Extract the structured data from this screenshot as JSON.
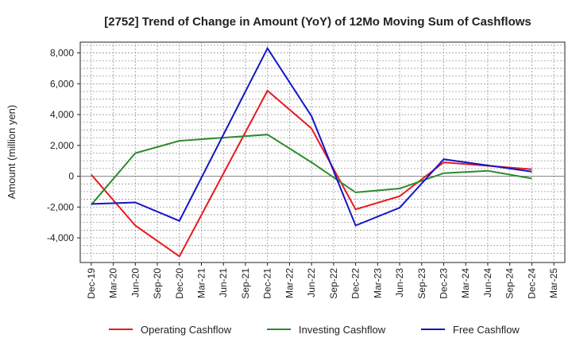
{
  "chart_data": {
    "type": "line",
    "title": "[2752]  Trend of Change in Amount (YoY) of 12Mo Moving Sum of Cashflows",
    "xlabel": "",
    "ylabel": "Amount (million yen)",
    "ylim": [
      -5600,
      8700
    ],
    "yticks": [
      -4000,
      -2000,
      0,
      2000,
      4000,
      6000,
      8000
    ],
    "ytick_labels": [
      "-4,000",
      "-2,000",
      "0",
      "2,000",
      "4,000",
      "6,000",
      "8,000"
    ],
    "categories": [
      "Dec-19",
      "Mar-20",
      "Jun-20",
      "Sep-20",
      "Dec-20",
      "Mar-21",
      "Jun-21",
      "Sep-21",
      "Dec-21",
      "Mar-22",
      "Jun-22",
      "Sep-22",
      "Dec-22",
      "Mar-23",
      "Jun-23",
      "Sep-23",
      "Dec-23",
      "Mar-24",
      "Jun-24",
      "Sep-24",
      "Dec-24",
      "Mar-25"
    ],
    "grid": true,
    "legend_position": "bottom",
    "series": [
      {
        "name": "Operating Cashflow",
        "color": "#e8191e",
        "points": [
          {
            "x": "Dec-19",
            "y": 100
          },
          {
            "x": "Jun-20",
            "y": -3200
          },
          {
            "x": "Dec-20",
            "y": -5200
          },
          {
            "x": "Dec-21",
            "y": 5550
          },
          {
            "x": "Jun-22",
            "y": 3100
          },
          {
            "x": "Dec-22",
            "y": -2150
          },
          {
            "x": "Jun-23",
            "y": -1300
          },
          {
            "x": "Dec-23",
            "y": 900
          },
          {
            "x": "Dec-24",
            "y": 450
          }
        ]
      },
      {
        "name": "Investing Cashflow",
        "color": "#2e8b2e",
        "points": [
          {
            "x": "Dec-19",
            "y": -1850
          },
          {
            "x": "Jun-20",
            "y": 1500
          },
          {
            "x": "Dec-20",
            "y": 2300
          },
          {
            "x": "Dec-21",
            "y": 2700
          },
          {
            "x": "Jun-22",
            "y": 900
          },
          {
            "x": "Dec-22",
            "y": -1050
          },
          {
            "x": "Jun-23",
            "y": -800
          },
          {
            "x": "Dec-23",
            "y": 200
          },
          {
            "x": "Jun-24",
            "y": 350
          },
          {
            "x": "Dec-24",
            "y": -150
          }
        ]
      },
      {
        "name": "Free Cashflow",
        "color": "#1414c8",
        "points": [
          {
            "x": "Dec-19",
            "y": -1800
          },
          {
            "x": "Jun-20",
            "y": -1700
          },
          {
            "x": "Dec-20",
            "y": -2900
          },
          {
            "x": "Dec-21",
            "y": 8300
          },
          {
            "x": "Jun-22",
            "y": 3900
          },
          {
            "x": "Dec-22",
            "y": -3200
          },
          {
            "x": "Jun-23",
            "y": -2050
          },
          {
            "x": "Dec-23",
            "y": 1100
          },
          {
            "x": "Dec-24",
            "y": 300
          }
        ]
      }
    ]
  }
}
